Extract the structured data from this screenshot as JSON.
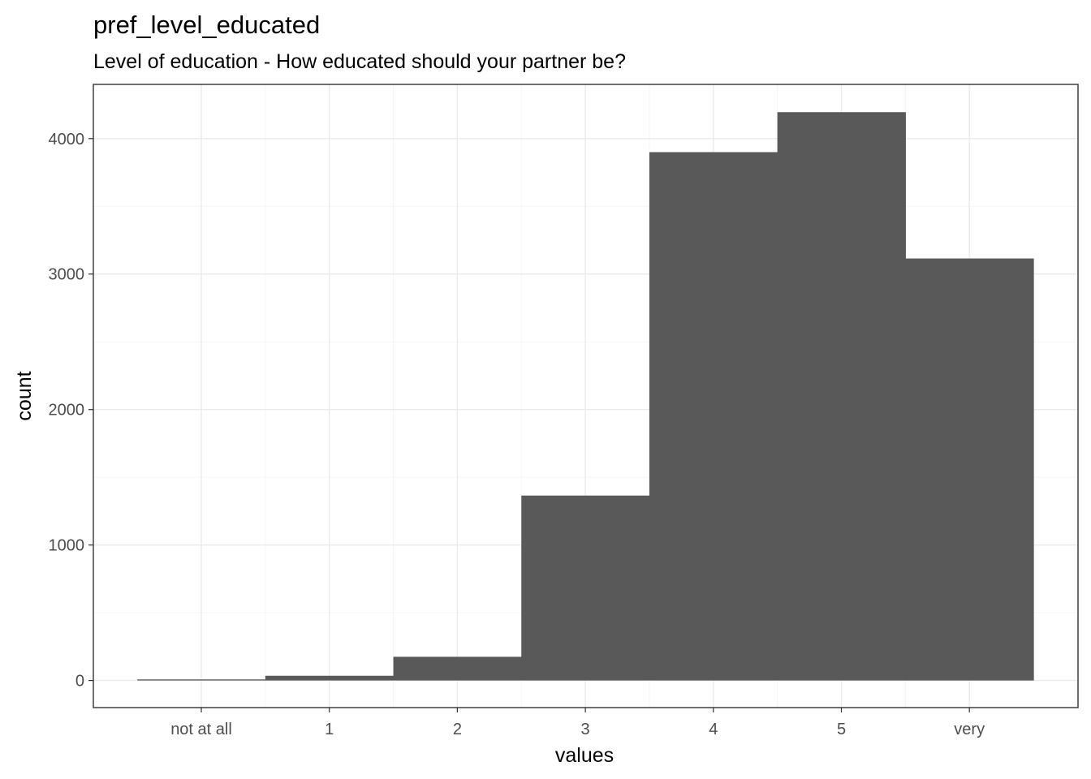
{
  "chart_data": {
    "type": "bar",
    "title": "pref_level_educated",
    "subtitle": "Level of education - How educated should your partner be?",
    "xlabel": "values",
    "ylabel": "count",
    "categories": [
      "not at all",
      "1",
      "2",
      "3",
      "4",
      "5",
      "very"
    ],
    "values": [
      8,
      35,
      175,
      1365,
      3900,
      4195,
      3115
    ],
    "ylim": [
      -200,
      4400
    ],
    "yticks": [
      0,
      1000,
      2000,
      3000,
      4000
    ],
    "ytick_labels": [
      "0",
      "1000",
      "2000",
      "3000",
      "4000"
    ],
    "grid": true,
    "legend": "none",
    "colors": {
      "bar": "#595959",
      "grid": "#ebebeb",
      "border": "#333333",
      "background": "#ffffff"
    }
  }
}
